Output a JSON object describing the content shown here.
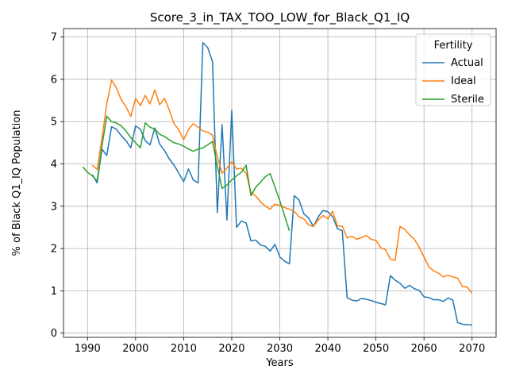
{
  "chart_data": {
    "type": "line",
    "title": "Score_3_in_TAX_TOO_LOW_for_Black_Q1_IQ",
    "xlabel": "Years",
    "ylabel": "% of Black Q1_IQ Population",
    "xlim": [
      1985,
      2075
    ],
    "ylim": [
      -0.1,
      7.2
    ],
    "xticks": [
      1990,
      2000,
      2010,
      2020,
      2030,
      2040,
      2050,
      2060,
      2070
    ],
    "yticks": [
      0,
      1,
      2,
      3,
      4,
      5,
      6,
      7
    ],
    "grid": true,
    "legend": {
      "title": "Fertility",
      "position": "top-right"
    },
    "series": [
      {
        "name": "Actual",
        "color": "#1f77b4",
        "x": [
          1991,
          1992,
          1993,
          1994,
          1995,
          1996,
          1997,
          1998,
          1999,
          2000,
          2001,
          2002,
          2003,
          2004,
          2005,
          2006,
          2007,
          2008,
          2009,
          2010,
          2011,
          2012,
          2013,
          2014,
          2015,
          2016,
          2017,
          2018,
          2019,
          2020,
          2021,
          2022,
          2023,
          2024,
          2025,
          2026,
          2027,
          2028,
          2029,
          2030,
          2031,
          2032,
          2033,
          2034,
          2035,
          2036,
          2037,
          2038,
          2039,
          2040,
          2041,
          2042,
          2043,
          2044,
          2045,
          2046,
          2047,
          2048,
          2049,
          2050,
          2051,
          2052,
          2053,
          2054,
          2055,
          2056,
          2057,
          2058,
          2059,
          2060,
          2061,
          2062,
          2063,
          2064,
          2065,
          2066,
          2067,
          2068,
          2069,
          2070
        ],
        "values": [
          3.75,
          3.55,
          4.35,
          4.2,
          4.88,
          4.82,
          4.67,
          4.55,
          4.38,
          4.9,
          4.82,
          4.55,
          4.45,
          4.85,
          4.47,
          4.32,
          4.12,
          3.97,
          3.78,
          3.58,
          3.88,
          3.62,
          3.55,
          6.87,
          6.75,
          6.42,
          2.85,
          4.93,
          2.67,
          5.27,
          2.5,
          2.65,
          2.6,
          2.18,
          2.2,
          2.08,
          2.05,
          1.94,
          2.1,
          1.8,
          1.7,
          1.64,
          3.25,
          3.15,
          2.82,
          2.72,
          2.52,
          2.75,
          2.9,
          2.87,
          2.75,
          2.47,
          2.42,
          0.84,
          0.78,
          0.76,
          0.82,
          0.8,
          0.77,
          0.73,
          0.7,
          0.67,
          1.36,
          1.25,
          1.18,
          1.06,
          1.13,
          1.05,
          1.01,
          0.86,
          0.84,
          0.79,
          0.79,
          0.75,
          0.83,
          0.78,
          0.25,
          0.21,
          0.2,
          0.19
        ]
      },
      {
        "name": "Ideal",
        "color": "#ff7f0e",
        "x": [
          1991,
          1992,
          1993,
          1994,
          1995,
          1996,
          1997,
          1998,
          1999,
          2000,
          2001,
          2002,
          2003,
          2004,
          2005,
          2006,
          2007,
          2008,
          2009,
          2010,
          2011,
          2012,
          2013,
          2014,
          2015,
          2016,
          2017,
          2018,
          2019,
          2020,
          2021,
          2022,
          2023,
          2024,
          2025,
          2026,
          2027,
          2028,
          2029,
          2030,
          2031,
          2032,
          2033,
          2034,
          2035,
          2036,
          2037,
          2038,
          2039,
          2040,
          2041,
          2042,
          2043,
          2044,
          2045,
          2046,
          2047,
          2048,
          2049,
          2050,
          2051,
          2052,
          2053,
          2054,
          2055,
          2056,
          2057,
          2058,
          2059,
          2060,
          2061,
          2062,
          2063,
          2064,
          2065,
          2066,
          2067,
          2068,
          2069,
          2070
        ],
        "values": [
          3.97,
          3.87,
          4.6,
          5.42,
          5.98,
          5.8,
          5.52,
          5.35,
          5.12,
          5.55,
          5.38,
          5.62,
          5.42,
          5.75,
          5.4,
          5.55,
          5.28,
          4.95,
          4.8,
          4.57,
          4.82,
          4.95,
          4.87,
          4.78,
          4.75,
          4.68,
          4.17,
          3.78,
          3.9,
          4.05,
          3.88,
          3.9,
          3.78,
          3.33,
          3.24,
          3.1,
          3.0,
          2.93,
          3.05,
          3.02,
          2.97,
          2.93,
          2.88,
          2.75,
          2.7,
          2.56,
          2.52,
          2.68,
          2.78,
          2.7,
          2.88,
          2.53,
          2.53,
          2.25,
          2.29,
          2.22,
          2.26,
          2.31,
          2.22,
          2.19,
          2.02,
          1.97,
          1.75,
          1.72,
          2.52,
          2.45,
          2.32,
          2.22,
          2.03,
          1.8,
          1.57,
          1.47,
          1.42,
          1.33,
          1.37,
          1.33,
          1.3,
          1.1,
          1.09,
          0.94
        ]
      },
      {
        "name": "Sterile",
        "color": "#2ca02c",
        "x": [
          1989,
          1990,
          1991,
          1992,
          1993,
          1994,
          1995,
          1996,
          1997,
          1998,
          1999,
          2000,
          2001,
          2002,
          2003,
          2004,
          2005,
          2006,
          2007,
          2008,
          2009,
          2010,
          2011,
          2012,
          2013,
          2014,
          2015,
          2016,
          2017,
          2018,
          2019,
          2020,
          2021,
          2022,
          2023,
          2024,
          2025,
          2026,
          2027,
          2028,
          2029,
          2030,
          2031,
          2032
        ],
        "values": [
          3.93,
          3.8,
          3.72,
          3.6,
          4.42,
          5.13,
          5.0,
          4.97,
          4.9,
          4.78,
          4.62,
          4.5,
          4.38,
          4.97,
          4.87,
          4.82,
          4.7,
          4.65,
          4.57,
          4.5,
          4.47,
          4.42,
          4.35,
          4.3,
          4.35,
          4.38,
          4.45,
          4.53,
          3.95,
          3.42,
          3.5,
          3.62,
          3.72,
          3.8,
          3.97,
          3.25,
          3.45,
          3.57,
          3.7,
          3.77,
          3.45,
          3.13,
          2.77,
          2.42
        ]
      }
    ]
  }
}
